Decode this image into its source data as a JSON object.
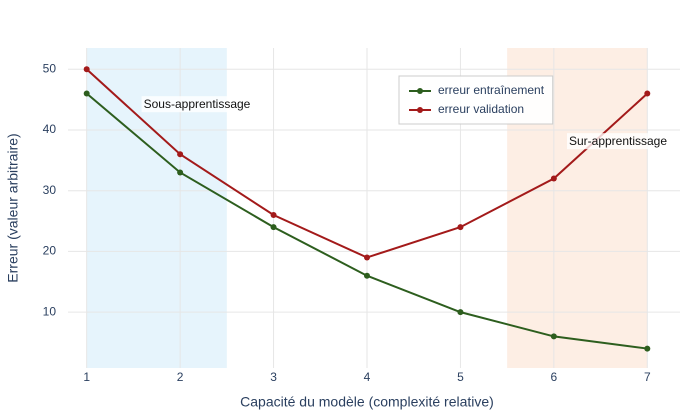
{
  "chart_data": {
    "type": "line",
    "x_label": "Capacité du modèle (complexité relative)",
    "y_label": "Erreur (valeur arbitraire)",
    "x": [
      1,
      2,
      3,
      4,
      5,
      6,
      7
    ],
    "series": [
      {
        "name": "erreur entraînement",
        "color": "#2d5e1e",
        "values": [
          46,
          33,
          24,
          16,
          10,
          6,
          4
        ]
      },
      {
        "name": "erreur validation",
        "color": "#a31a1a",
        "values": [
          50,
          36,
          26,
          19,
          24,
          32,
          46
        ]
      }
    ],
    "regions": [
      {
        "x0": 1,
        "x1": 2.5,
        "color": "#e6f4fc"
      },
      {
        "x0": 5.5,
        "x1": 7,
        "color": "#fdeee4"
      }
    ],
    "annotations": [
      "Sous-apprentissage",
      "Sur-apprentissage"
    ],
    "xlim": [
      0.8,
      7.35
    ],
    "xticks": [
      1,
      2,
      3,
      4,
      5,
      6,
      7
    ],
    "ylim": [
      0.8,
      53.5
    ],
    "yticks": [
      10,
      20,
      30,
      40,
      50
    ],
    "grid": true,
    "legend": "top-right"
  }
}
